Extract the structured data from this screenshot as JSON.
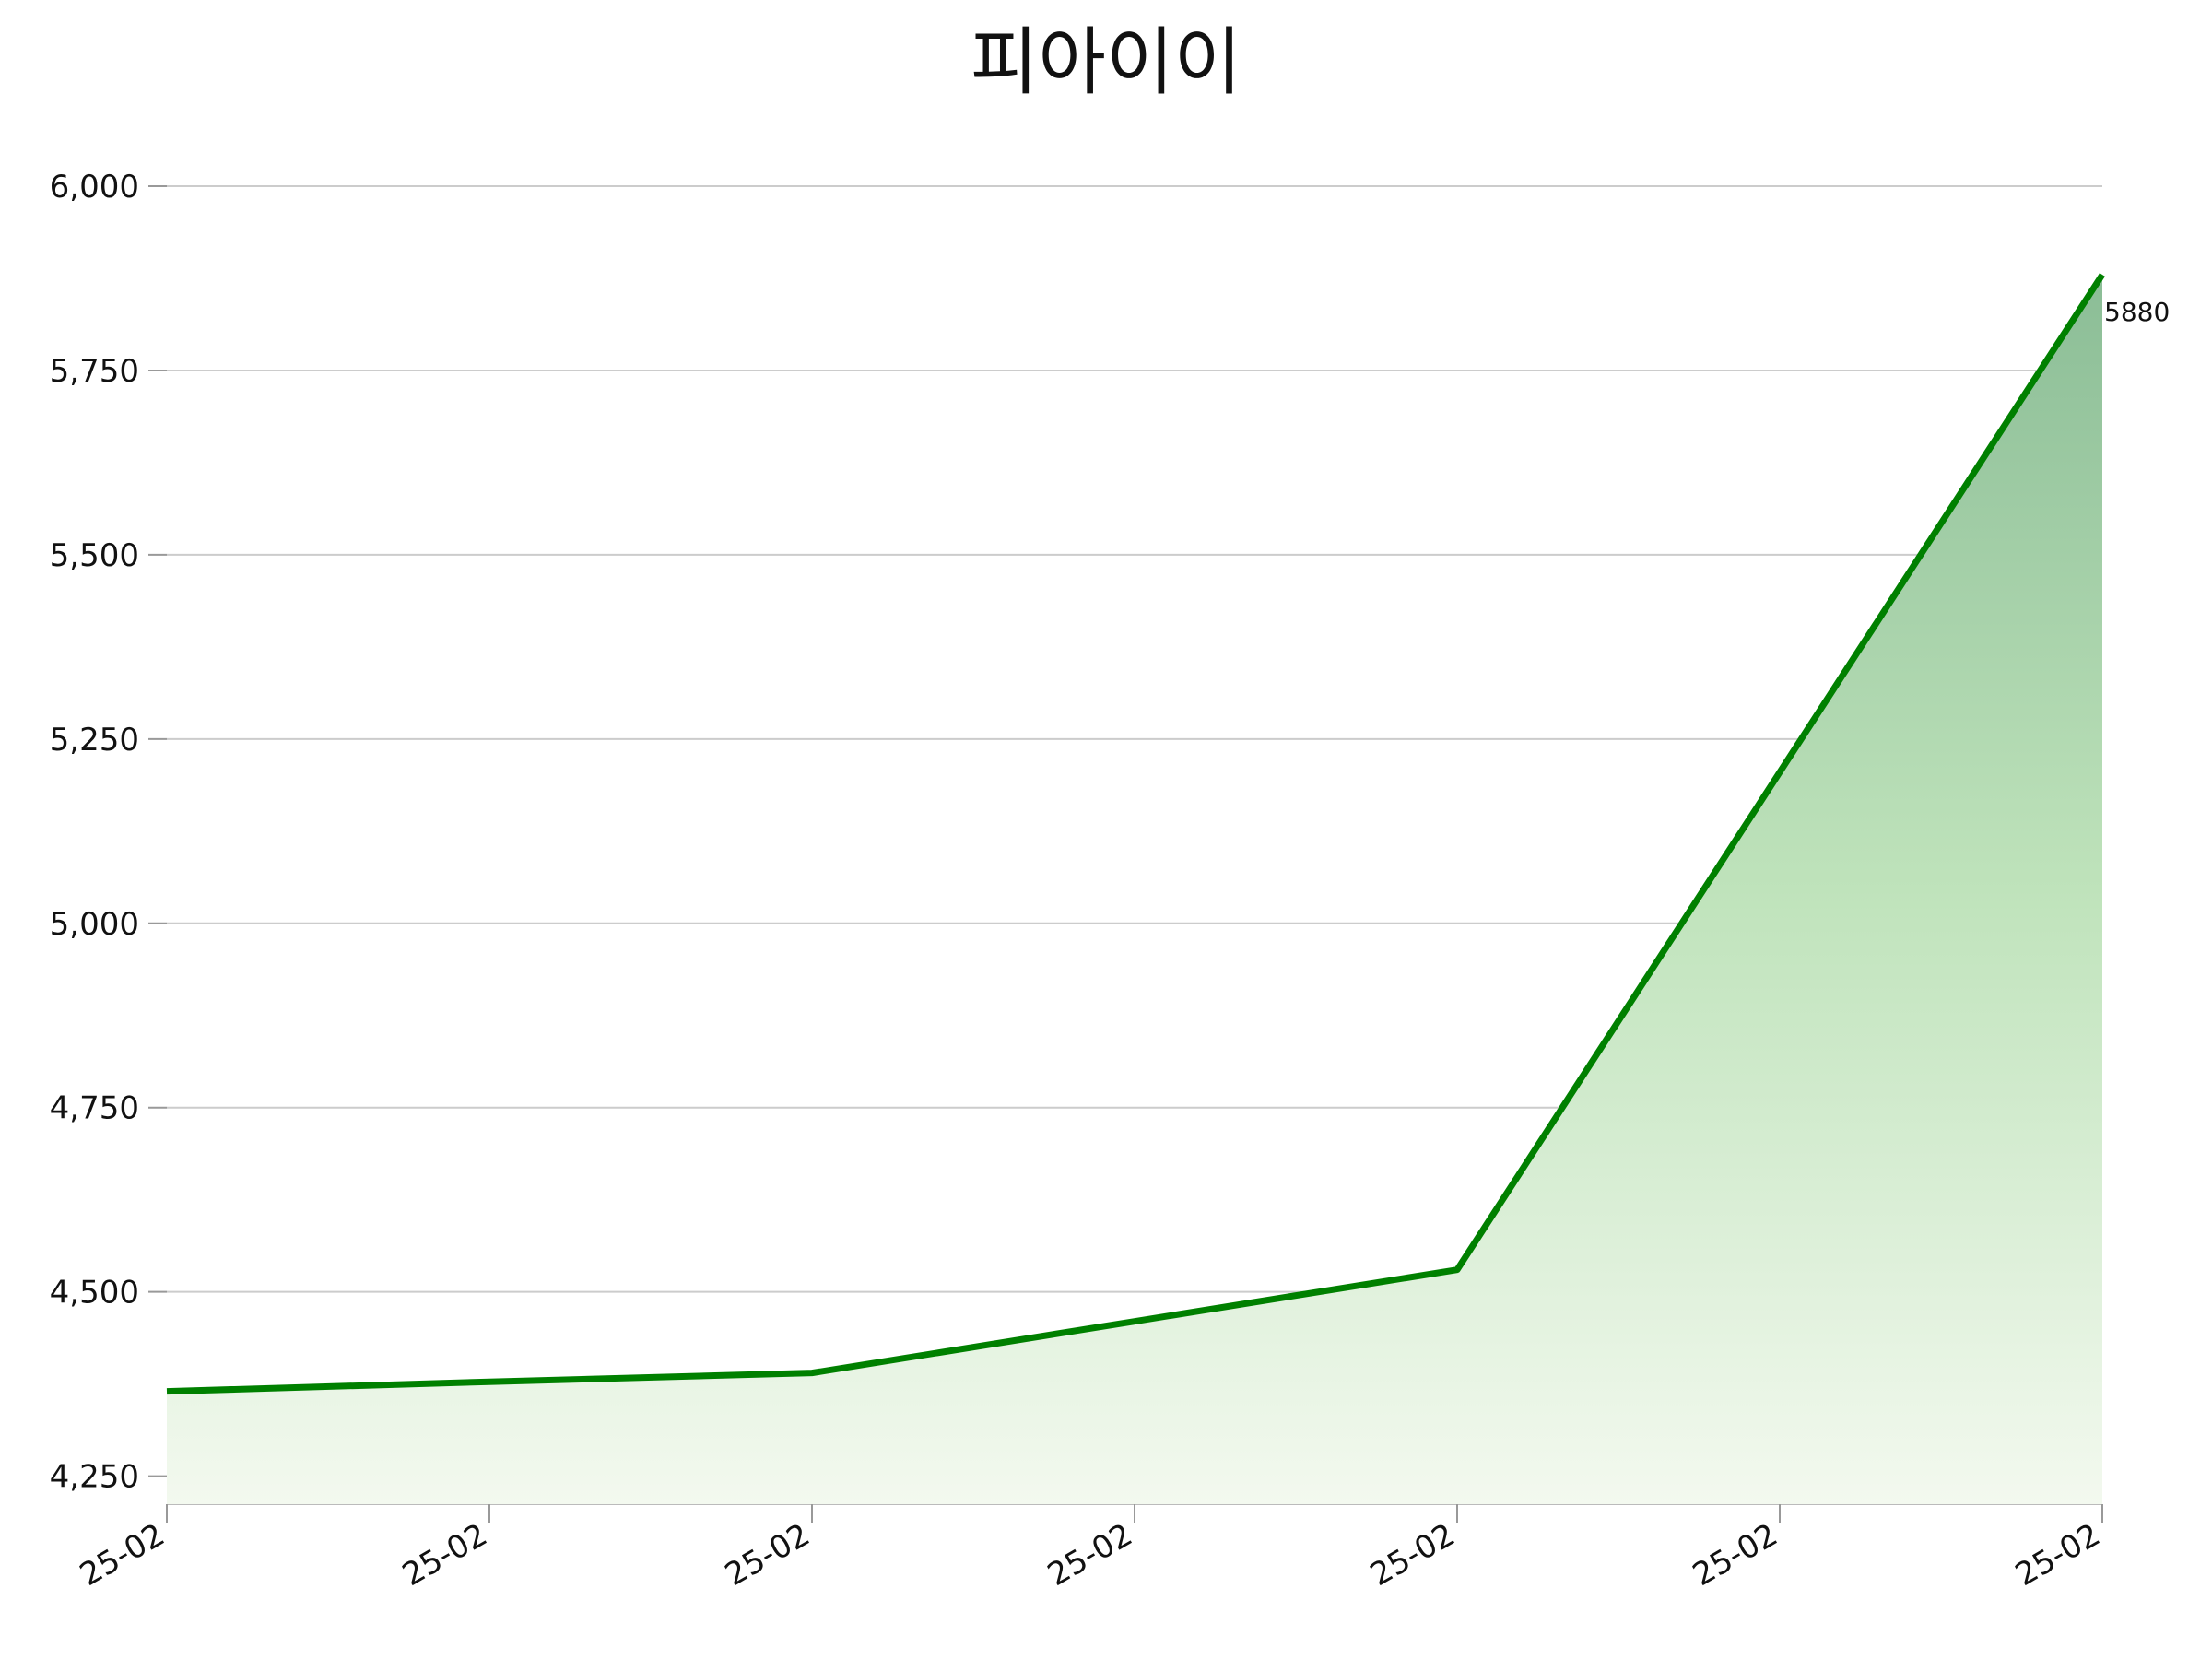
{
  "chart_data": {
    "type": "line",
    "title": "피아이이",
    "categories": [
      "25-02",
      "25-02",
      "25-02",
      "25-02",
      "25-02",
      "25-02",
      "25-02"
    ],
    "values": [
      4365,
      4378,
      4390,
      4460,
      4530,
      5205,
      5880
    ],
    "color": "#008000",
    "ylim": [
      4212,
      6000
    ],
    "yticks": [
      {
        "value": 4250,
        "label": "4,250"
      },
      {
        "value": 4500,
        "label": "4,500"
      },
      {
        "value": 4750,
        "label": "4,750"
      },
      {
        "value": 5000,
        "label": "5,000"
      },
      {
        "value": 5250,
        "label": "5,250"
      },
      {
        "value": 5500,
        "label": "5,500"
      },
      {
        "value": 5750,
        "label": "5,750"
      },
      {
        "value": 6000,
        "label": "6,000"
      }
    ],
    "grid": true
  }
}
